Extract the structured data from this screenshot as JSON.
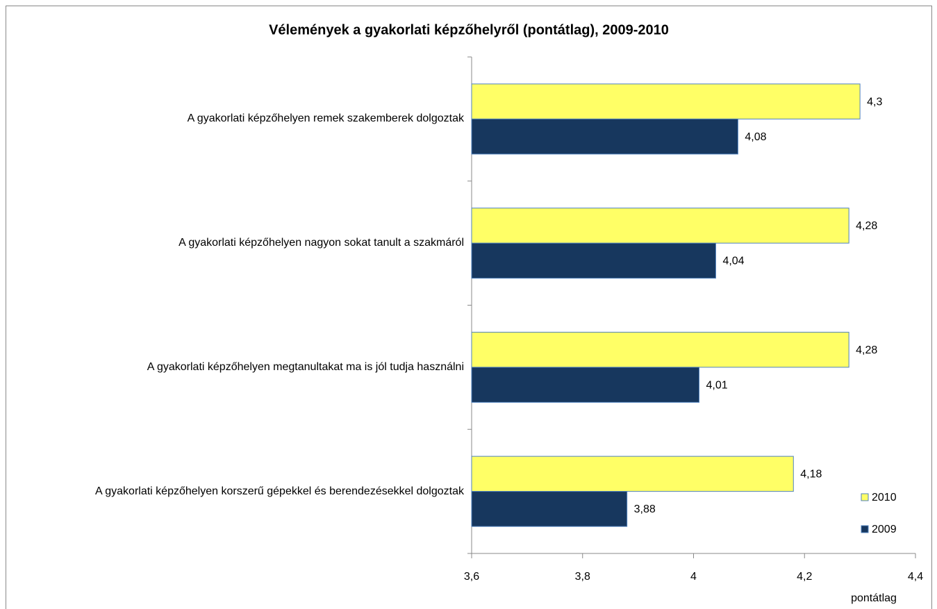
{
  "chart_data": {
    "type": "hbar",
    "title": "Vélemények a gyakorlati képzőhelyről (pontátlag), 2009-2010",
    "x_label": "pontátlag",
    "categories": [
      "A gyakorlati képzőhelyen remek szakemberek dolgoztak",
      "A gyakorlati képzőhelyen nagyon sokat tanult a szakmáról",
      "A gyakorlati képzőhelyen megtanultakat ma is jól tudja használni",
      "A gyakorlati képzőhelyen korszerű gépekkel és berendezésekkel dolgoztak"
    ],
    "series": [
      {
        "name": "2010",
        "color": "#ffff66",
        "values": [
          4.3,
          4.28,
          4.28,
          4.18
        ],
        "value_labels": [
          "4,3",
          "4,28",
          "4,28",
          "4,18"
        ]
      },
      {
        "name": "2009",
        "color": "#17375e",
        "values": [
          4.08,
          4.04,
          4.01,
          3.88
        ],
        "value_labels": [
          "4,08",
          "4,04",
          "4,01",
          "3,88"
        ]
      }
    ],
    "xlim": [
      3.6,
      4.4
    ],
    "xticks": [
      {
        "value": 3.6,
        "label": "3,6"
      },
      {
        "value": 3.8,
        "label": "3,8"
      },
      4,
      {
        "value": 4.2,
        "label": "4,2"
      },
      {
        "value": 4.4,
        "label": "4,4"
      }
    ],
    "legend": "bottom-right"
  }
}
